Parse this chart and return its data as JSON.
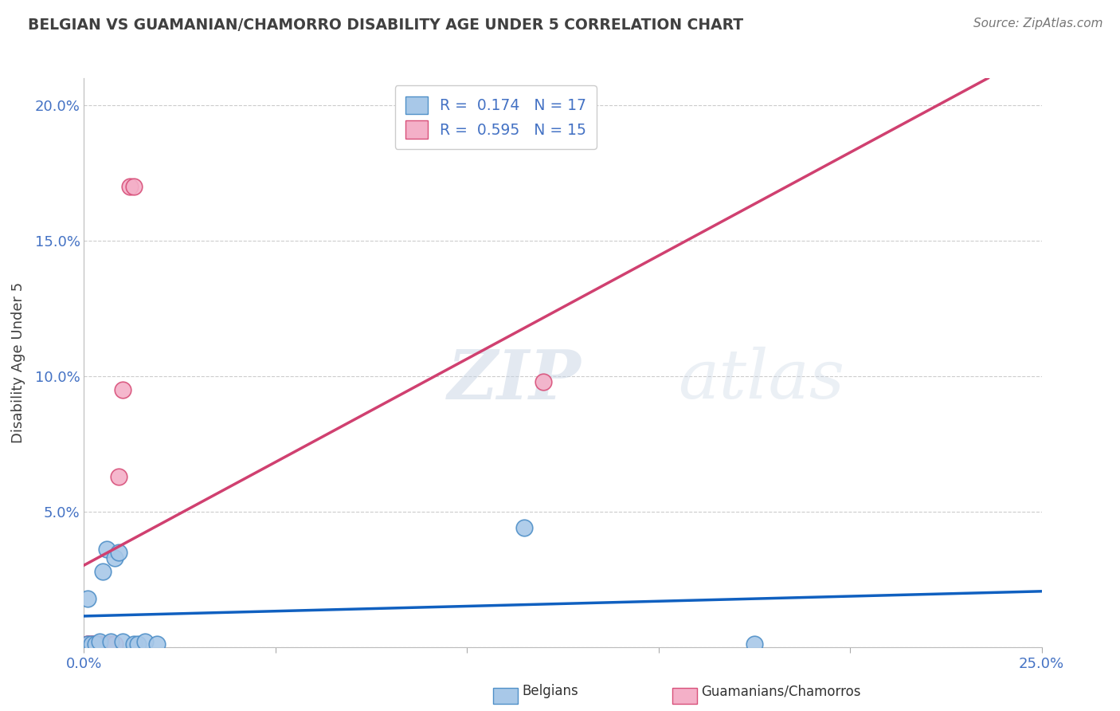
{
  "title": "BELGIAN VS GUAMANIAN/CHAMORRO DISABILITY AGE UNDER 5 CORRELATION CHART",
  "source": "Source: ZipAtlas.com",
  "ylabel": "Disability Age Under 5",
  "belgian_R": 0.174,
  "belgian_N": 17,
  "guamanian_R": 0.595,
  "guamanian_N": 15,
  "xlim": [
    0.0,
    0.25
  ],
  "ylim": [
    0.0,
    0.21
  ],
  "belgian_x": [
    0.001,
    0.001,
    0.002,
    0.003,
    0.004,
    0.005,
    0.006,
    0.007,
    0.008,
    0.009,
    0.01,
    0.013,
    0.014,
    0.016,
    0.019,
    0.115,
    0.175
  ],
  "belgian_y": [
    0.001,
    0.018,
    0.001,
    0.001,
    0.002,
    0.028,
    0.036,
    0.002,
    0.033,
    0.035,
    0.002,
    0.001,
    0.001,
    0.002,
    0.001,
    0.044,
    0.001
  ],
  "guamanian_x": [
    0.001,
    0.001,
    0.002,
    0.002,
    0.003,
    0.003,
    0.004,
    0.006,
    0.007,
    0.008,
    0.009,
    0.01,
    0.012,
    0.013,
    0.12
  ],
  "guamanian_y": [
    0.001,
    0.001,
    0.001,
    0.001,
    0.001,
    0.001,
    0.001,
    0.001,
    0.001,
    0.001,
    0.063,
    0.095,
    0.17,
    0.17,
    0.098
  ],
  "belgian_color": "#a8c8e8",
  "belgian_edge_color": "#5090c8",
  "guamanian_color": "#f4b0c8",
  "guamanian_edge_color": "#d8507a",
  "trend_belgian_color": "#1060c0",
  "trend_guamanian_color": "#d04070",
  "background_color": "#ffffff",
  "grid_color": "#cccccc",
  "title_color": "#404040",
  "axis_color": "#4472c4",
  "legend_color": "#4472c4"
}
